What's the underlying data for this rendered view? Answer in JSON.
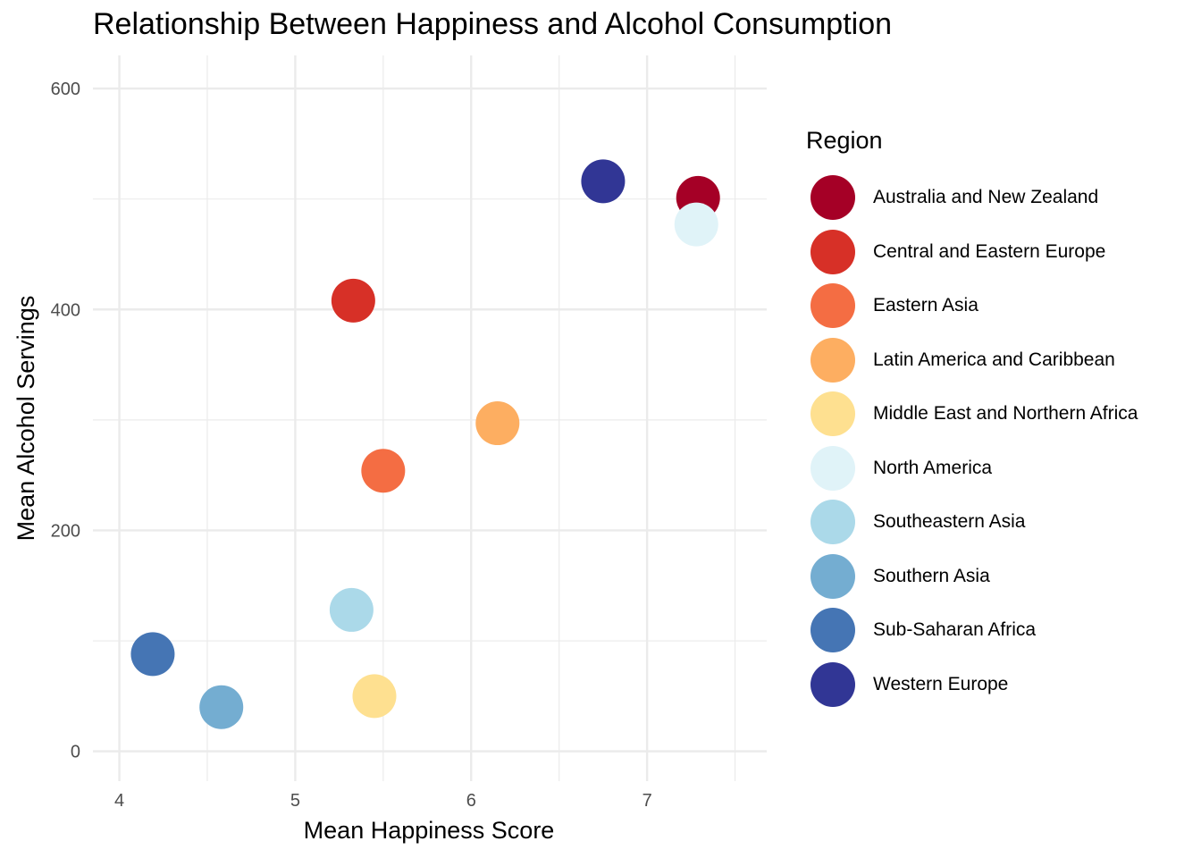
{
  "chart_data": {
    "type": "scatter",
    "title": "Relationship Between Happiness and Alcohol Consumption",
    "xlabel": "Mean Happiness Score",
    "ylabel": "Mean Alcohol Servings",
    "xlim": [
      3.85,
      7.68
    ],
    "ylim": [
      -27,
      630
    ],
    "xticks": [
      4,
      5,
      6,
      7
    ],
    "yticks": [
      0,
      200,
      400,
      600
    ],
    "grid": true,
    "legend": {
      "title": "Region",
      "position": "right"
    },
    "series": [
      {
        "name": "Australia and New Zealand",
        "color": "#a50026",
        "x": 7.29,
        "y": 501
      },
      {
        "name": "Central and Eastern Europe",
        "color": "#d73027",
        "x": 5.33,
        "y": 408
      },
      {
        "name": "Eastern Asia",
        "color": "#f46d43",
        "x": 5.5,
        "y": 254
      },
      {
        "name": "Latin America and Caribbean",
        "color": "#fdae61",
        "x": 6.15,
        "y": 297
      },
      {
        "name": "Middle East and Northern Africa",
        "color": "#fee090",
        "x": 5.45,
        "y": 50
      },
      {
        "name": "North America",
        "color": "#e0f3f8",
        "x": 7.28,
        "y": 477
      },
      {
        "name": "Southeastern Asia",
        "color": "#abd9e9",
        "x": 5.32,
        "y": 128
      },
      {
        "name": "Southern Asia",
        "color": "#74add1",
        "x": 4.58,
        "y": 40
      },
      {
        "name": "Sub-Saharan Africa",
        "color": "#4575b4",
        "x": 4.19,
        "y": 88
      },
      {
        "name": "Western Europe",
        "color": "#313695",
        "x": 6.75,
        "y": 516
      }
    ]
  }
}
